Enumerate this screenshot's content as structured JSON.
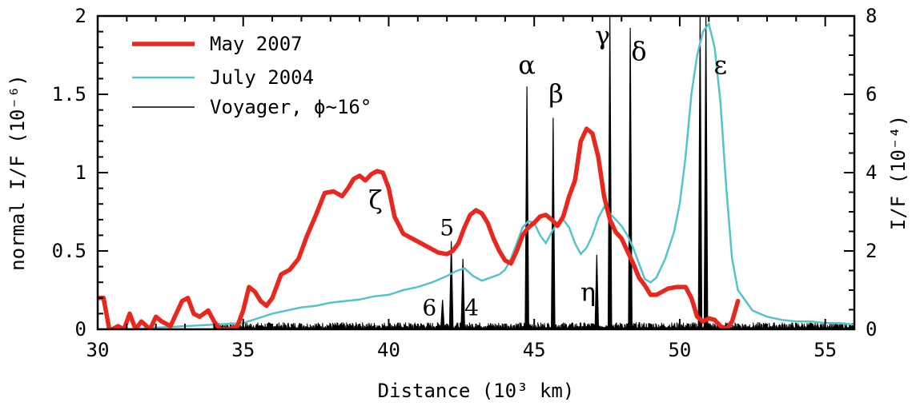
{
  "chart_data": {
    "type": "line",
    "xlabel": "Distance (10³ km)",
    "ylabel_left": "normal I/F (10⁻⁶)",
    "ylabel_right": "I/F (10⁻⁴)",
    "xlim": [
      30,
      56
    ],
    "ylim_left": [
      0,
      2
    ],
    "ylim_right": [
      0,
      8
    ],
    "x_ticks": [
      "30",
      "35",
      "40",
      "45",
      "50",
      "55"
    ],
    "y_ticks_left": [
      "0",
      "0.5",
      "1",
      "1.5",
      "2"
    ],
    "y_ticks_right": [
      "0",
      "2",
      "4",
      "6",
      "8"
    ],
    "legend_position": "top-left",
    "series": [
      {
        "name": "May 2007",
        "color": "#e8281e",
        "axis": "left",
        "x": [
          30.0,
          30.2,
          30.4,
          30.5,
          30.7,
          30.9,
          31.1,
          31.3,
          31.5,
          31.8,
          32.0,
          32.2,
          32.5,
          32.7,
          32.9,
          33.1,
          33.3,
          33.5,
          33.8,
          34.0,
          34.2,
          34.5,
          34.8,
          35.0,
          35.2,
          35.4,
          35.6,
          35.8,
          36.0,
          36.3,
          36.6,
          36.9,
          37.2,
          37.5,
          37.8,
          38.1,
          38.4,
          38.6,
          38.8,
          39.0,
          39.2,
          39.4,
          39.6,
          39.8,
          40.0,
          40.2,
          40.5,
          40.8,
          41.1,
          41.4,
          41.7,
          42.0,
          42.2,
          42.4,
          42.6,
          42.8,
          43.0,
          43.2,
          43.4,
          43.6,
          43.8,
          44.0,
          44.2,
          44.4,
          44.6,
          44.8,
          45.0,
          45.2,
          45.4,
          45.6,
          45.8,
          46.0,
          46.2,
          46.4,
          46.6,
          46.8,
          47.0,
          47.2,
          47.4,
          47.6,
          47.8,
          48.0,
          48.2,
          48.4,
          48.6,
          48.8,
          49.0,
          49.2,
          49.4,
          49.6,
          49.9,
          50.2,
          50.4,
          50.6,
          50.8,
          51.0,
          51.2,
          51.4,
          51.6,
          51.8,
          52.0
        ],
        "y": [
          0.2,
          0.2,
          0.0,
          0.0,
          0.02,
          0.0,
          0.1,
          0.0,
          0.05,
          0.0,
          0.08,
          0.05,
          0.02,
          0.1,
          0.18,
          0.2,
          0.1,
          0.08,
          0.12,
          0.05,
          0.0,
          0.0,
          0.02,
          0.12,
          0.27,
          0.24,
          0.18,
          0.15,
          0.2,
          0.35,
          0.38,
          0.45,
          0.6,
          0.73,
          0.87,
          0.88,
          0.85,
          0.9,
          0.96,
          0.98,
          0.95,
          0.99,
          1.01,
          1.0,
          0.9,
          0.72,
          0.61,
          0.58,
          0.55,
          0.52,
          0.49,
          0.48,
          0.5,
          0.55,
          0.65,
          0.73,
          0.76,
          0.74,
          0.68,
          0.58,
          0.5,
          0.44,
          0.42,
          0.5,
          0.6,
          0.65,
          0.68,
          0.72,
          0.73,
          0.7,
          0.66,
          0.72,
          0.85,
          0.95,
          1.2,
          1.28,
          1.25,
          1.1,
          0.85,
          0.7,
          0.62,
          0.58,
          0.5,
          0.42,
          0.33,
          0.28,
          0.22,
          0.22,
          0.24,
          0.26,
          0.27,
          0.27,
          0.2,
          0.08,
          0.05,
          0.07,
          0.06,
          0.02,
          0.0,
          0.05,
          0.18
        ]
      },
      {
        "name": "July 2004",
        "color": "#55c3c8",
        "axis": "left",
        "x": [
          30.0,
          31.0,
          32.0,
          33.0,
          34.0,
          35.0,
          35.5,
          36.0,
          36.5,
          37.0,
          37.5,
          38.0,
          38.5,
          39.0,
          39.5,
          40.0,
          40.5,
          41.0,
          41.5,
          42.0,
          42.3,
          42.6,
          42.9,
          43.2,
          43.5,
          43.8,
          44.0,
          44.2,
          44.4,
          44.6,
          44.8,
          45.0,
          45.2,
          45.4,
          45.6,
          45.8,
          46.0,
          46.2,
          46.4,
          46.6,
          46.8,
          47.0,
          47.2,
          47.4,
          47.6,
          47.8,
          48.0,
          48.2,
          48.4,
          48.6,
          48.8,
          49.0,
          49.2,
          49.5,
          49.8,
          50.0,
          50.2,
          50.4,
          50.6,
          50.8,
          51.0,
          51.2,
          51.4,
          51.6,
          51.8,
          52.0,
          52.5,
          53.0,
          53.5,
          54.0,
          54.5,
          55.0,
          55.5,
          56.0
        ],
        "y": [
          0.0,
          0.0,
          0.01,
          0.02,
          0.03,
          0.04,
          0.07,
          0.1,
          0.12,
          0.14,
          0.15,
          0.17,
          0.18,
          0.19,
          0.21,
          0.22,
          0.25,
          0.27,
          0.3,
          0.34,
          0.37,
          0.39,
          0.34,
          0.31,
          0.33,
          0.35,
          0.38,
          0.45,
          0.55,
          0.65,
          0.69,
          0.68,
          0.6,
          0.55,
          0.62,
          0.68,
          0.7,
          0.65,
          0.55,
          0.48,
          0.52,
          0.6,
          0.71,
          0.78,
          0.74,
          0.7,
          0.66,
          0.6,
          0.52,
          0.42,
          0.32,
          0.3,
          0.33,
          0.45,
          0.62,
          0.8,
          1.1,
          1.5,
          1.75,
          1.9,
          1.95,
          1.8,
          1.45,
          0.9,
          0.45,
          0.25,
          0.12,
          0.08,
          0.06,
          0.05,
          0.05,
          0.04,
          0.04,
          0.03
        ]
      },
      {
        "name": "Voyager, ϕ~16°",
        "color": "#000000",
        "axis": "right",
        "baseline": 0.15,
        "peaks": [
          {
            "x": 41.85,
            "y": 0.75
          },
          {
            "x": 42.15,
            "y": 2.25
          },
          {
            "x": 42.55,
            "y": 1.8
          },
          {
            "x": 44.75,
            "y": 6.2
          },
          {
            "x": 45.65,
            "y": 5.4
          },
          {
            "x": 47.15,
            "y": 1.9
          },
          {
            "x": 47.6,
            "y": 8.0
          },
          {
            "x": 48.3,
            "y": 7.7
          },
          {
            "x": 50.7,
            "y": 8.0
          },
          {
            "x": 50.9,
            "y": 8.0
          }
        ]
      }
    ],
    "annotations": [
      {
        "text": "α",
        "x": 44.75,
        "y_left": 1.63,
        "class": "greek"
      },
      {
        "text": "β",
        "x": 45.75,
        "y_left": 1.45,
        "class": "greek"
      },
      {
        "text": "γ",
        "x": 47.35,
        "y_left": 1.82,
        "class": "greek"
      },
      {
        "text": "δ",
        "x": 48.6,
        "y_left": 1.72,
        "class": "greek"
      },
      {
        "text": "ε",
        "x": 51.4,
        "y_left": 1.63,
        "class": "greek"
      },
      {
        "text": "ζ",
        "x": 39.55,
        "y_left": 0.77,
        "class": "greek"
      },
      {
        "text": "η",
        "x": 46.85,
        "y_left": 0.18,
        "class": "greek"
      },
      {
        "text": "5",
        "x": 42.0,
        "y_left": 0.6,
        "class": "ringnum"
      },
      {
        "text": "6",
        "x": 41.4,
        "y_left": 0.09,
        "class": "ringnum"
      },
      {
        "text": "4",
        "x": 42.85,
        "y_left": 0.09,
        "class": "ringnum"
      }
    ]
  }
}
